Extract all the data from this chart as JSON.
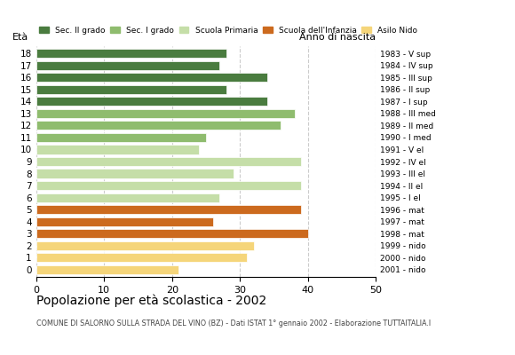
{
  "ages": [
    18,
    17,
    16,
    15,
    14,
    13,
    12,
    11,
    10,
    9,
    8,
    7,
    6,
    5,
    4,
    3,
    2,
    1,
    0
  ],
  "values": [
    28,
    27,
    34,
    28,
    34,
    38,
    36,
    25,
    24,
    39,
    29,
    39,
    27,
    39,
    26,
    40,
    32,
    31,
    21
  ],
  "colors": [
    "#4a7c3f",
    "#4a7c3f",
    "#4a7c3f",
    "#4a7c3f",
    "#4a7c3f",
    "#8fbc6e",
    "#8fbc6e",
    "#8fbc6e",
    "#c5dea8",
    "#c5dea8",
    "#c5dea8",
    "#c5dea8",
    "#c5dea8",
    "#cc6a1e",
    "#cc6a1e",
    "#cc6a1e",
    "#f5d57a",
    "#f5d57a",
    "#f5d57a"
  ],
  "right_labels": [
    "1983 - V sup",
    "1984 - IV sup",
    "1985 - III sup",
    "1986 - II sup",
    "1987 - I sup",
    "1988 - III med",
    "1989 - II med",
    "1990 - I med",
    "1991 - V el",
    "1992 - IV el",
    "1993 - III el",
    "1994 - II el",
    "1995 - I el",
    "1996 - mat",
    "1997 - mat",
    "1998 - mat",
    "1999 - nido",
    "2000 - nido",
    "2001 - nido"
  ],
  "legend_labels": [
    "Sec. II grado",
    "Sec. I grado",
    "Scuola Primaria",
    "Scuola dell'Infanzia",
    "Asilo Nido"
  ],
  "legend_colors": [
    "#4a7c3f",
    "#8fbc6e",
    "#c5dea8",
    "#cc6a1e",
    "#f5d57a"
  ],
  "title": "Popolazione per età scolastica - 2002",
  "subtitle": "COMUNE DI SALORNO SULLA STRADA DEL VINO (BZ) - Dati ISTAT 1° gennaio 2002 - Elaborazione TUTTAITALIA.I",
  "label_left": "Età",
  "label_right": "Anno di nascita",
  "xlim": [
    0,
    50
  ],
  "xticks": [
    0,
    10,
    20,
    30,
    40,
    50
  ],
  "background_color": "#ffffff",
  "grid_color": "#cccccc"
}
